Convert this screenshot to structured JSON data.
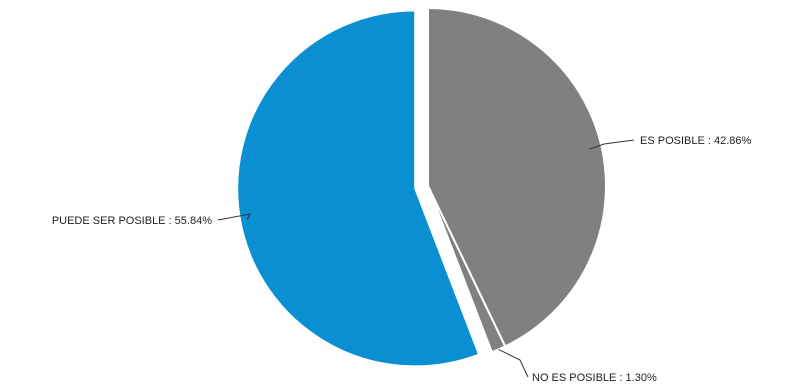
{
  "chart_data": {
    "type": "pie",
    "slices": [
      {
        "label": "ES POSIBLE",
        "value": 42.86,
        "display": "ES POSIBLE : 42.86%",
        "color": "#808080",
        "exploded": false
      },
      {
        "label": "NO ES POSIBLE",
        "value": 1.3,
        "display": "NO ES POSIBLE : 1.30%",
        "color": "#808080",
        "exploded": false
      },
      {
        "label": "PUEDE SER POSIBLE",
        "value": 55.84,
        "display": "PUEDE SER POSIBLE : 55.84%",
        "color": "#0a8fd2",
        "exploded": true
      }
    ],
    "start_angle_deg": 0,
    "direction": "clockwise",
    "legend": "none",
    "data_labels": "outside-with-leader-lines"
  }
}
